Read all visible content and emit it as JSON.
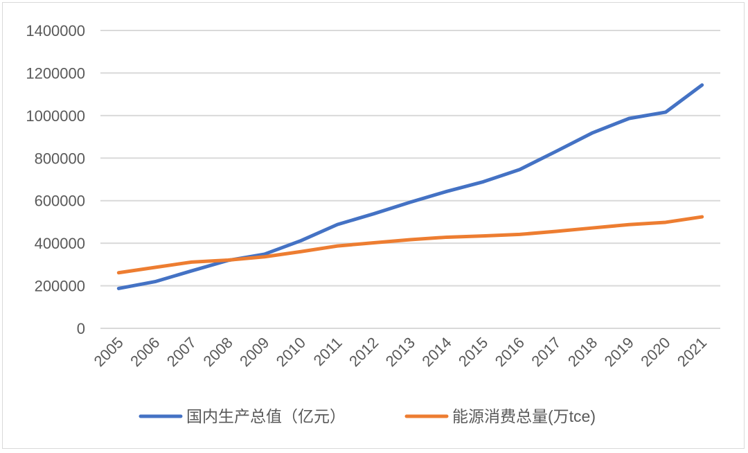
{
  "chart_data": {
    "type": "line",
    "title": "",
    "xlabel": "",
    "ylabel": "",
    "x": [
      "2005",
      "2006",
      "2007",
      "2008",
      "2009",
      "2010",
      "2011",
      "2012",
      "2013",
      "2014",
      "2015",
      "2016",
      "2017",
      "2018",
      "2019",
      "2020",
      "2021"
    ],
    "yticks": [
      "0",
      "200000",
      "400000",
      "600000",
      "800000",
      "1000000",
      "1200000",
      "1400000"
    ],
    "ylim": [
      0,
      1400000
    ],
    "grid": true,
    "legend_position": "bottom",
    "series": [
      {
        "name": "国内生产总值（亿元）",
        "color": "#4472c4",
        "values": [
          187319,
          219439,
          270092,
          319245,
          348518,
          412119,
          487940,
          538580,
          592963,
          643563,
          688858,
          746395,
          832036,
          919281,
          986515,
          1015986,
          1143670
        ]
      },
      {
        "name": "能源消费总量(万tce)",
        "color": "#ed7d31",
        "values": [
          261369,
          286467,
          311442,
          320611,
          336126,
          360648,
          387043,
          402138,
          416913,
          428334,
          434113,
          441492,
          455827,
          471925,
          487488,
          498314,
          524000
        ]
      }
    ]
  }
}
